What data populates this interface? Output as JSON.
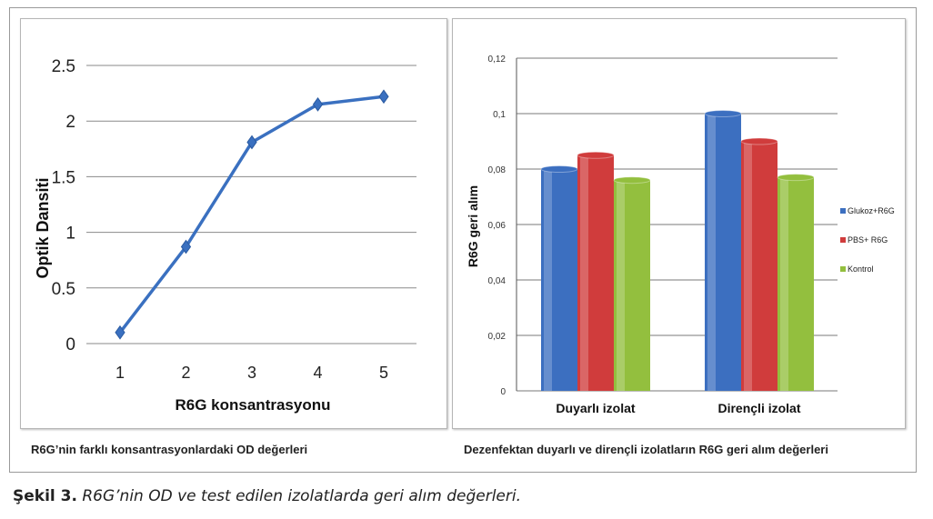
{
  "figure_caption": {
    "label": "Şekil 3.",
    "text": " R6G’nin OD ve test edilen izolatlarda geri alım değerleri."
  },
  "chart_data": [
    {
      "type": "line",
      "caption": "R6G’nin farklı konsantrasyonlardaki OD değerleri",
      "xlabel": "R6G konsantrasyonu",
      "ylabel": "Optik Dansiti",
      "x": [
        1,
        2,
        3,
        4,
        5
      ],
      "series": [
        {
          "values": [
            0.1,
            0.87,
            1.81,
            2.15,
            2.22
          ]
        }
      ],
      "ylim": [
        0,
        2.5
      ],
      "yticks": [
        "0",
        "0.5",
        "1",
        "1.5",
        "2",
        "2.5"
      ],
      "xticks": [
        "1",
        "2",
        "3",
        "4",
        "5"
      ],
      "grid": true,
      "colors": {
        "line": "#3a70c0"
      }
    },
    {
      "type": "bar",
      "caption": "Dezenfektan duyarlı ve dirençli izolatların R6G geri alım değerleri",
      "ylabel": "R6G geri alım",
      "categories": [
        "Duyarlı izolat",
        "Dirençli izolat"
      ],
      "series": [
        {
          "name": "Glukoz+R6G",
          "values": [
            0.08,
            0.1
          ],
          "color": "#3c6fc0"
        },
        {
          "name": "PBS+ R6G",
          "values": [
            0.085,
            0.09
          ],
          "color": "#d03c3c"
        },
        {
          "name": "Kontrol",
          "values": [
            0.076,
            0.077
          ],
          "color": "#93bf3e"
        }
      ],
      "ylim": [
        0,
        0.12
      ],
      "yticks": [
        "0",
        "0,02",
        "0,04",
        "0,06",
        "0,08",
        "0,1",
        "0,12"
      ],
      "grid": true,
      "legend": "right"
    }
  ]
}
